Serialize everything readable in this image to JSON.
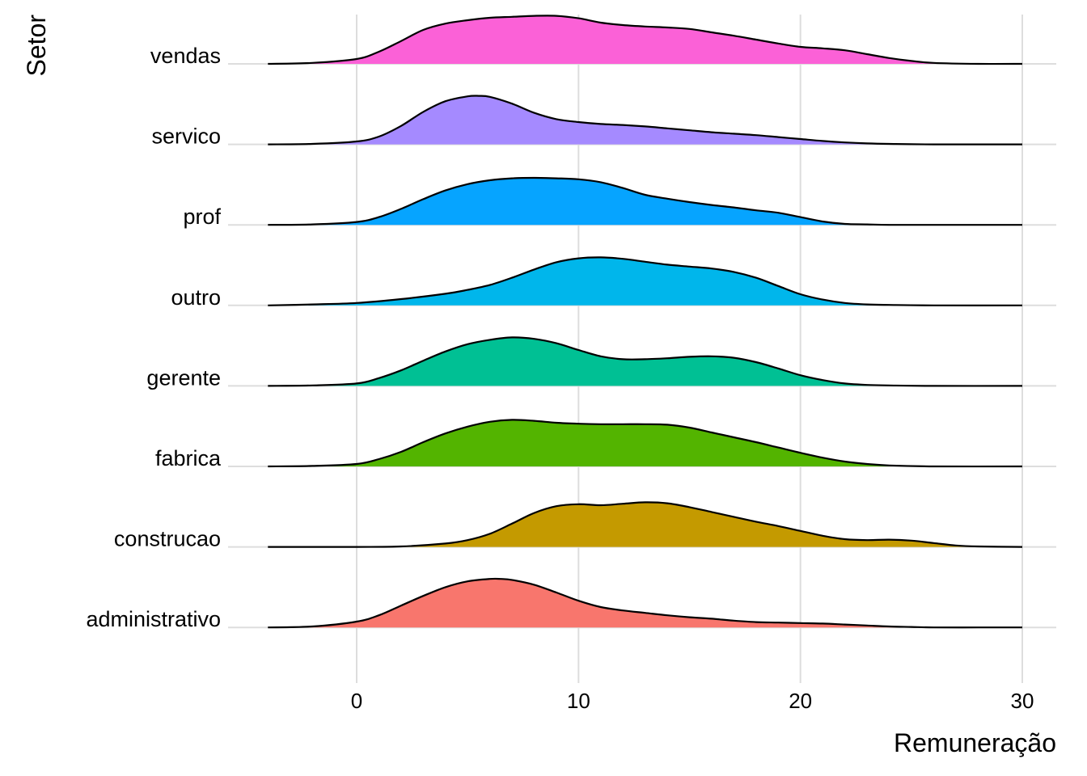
{
  "chart_data": {
    "type": "ridgeline",
    "xlabel": "Remuneração",
    "ylabel": "Setor",
    "xlim": [
      -4,
      30
    ],
    "x_ticks": [
      0,
      10,
      20,
      30
    ],
    "x_tick_labels": [
      "0",
      "10",
      "20",
      "30"
    ],
    "grid": true,
    "legend": "none",
    "series": [
      {
        "name": "administrativo",
        "color": "#F8766D",
        "x": [
          -4,
          -2,
          0,
          1,
          2,
          3,
          4,
          5,
          6,
          6.5,
          7,
          8,
          9,
          10,
          11,
          12,
          13,
          14,
          15,
          16,
          17,
          18,
          19,
          20,
          21,
          22,
          23,
          24,
          25,
          26,
          28,
          30
        ],
        "y": [
          0.0,
          0.02,
          0.12,
          0.25,
          0.45,
          0.65,
          0.83,
          0.95,
          1.0,
          1.0,
          0.98,
          0.88,
          0.72,
          0.55,
          0.42,
          0.35,
          0.3,
          0.25,
          0.21,
          0.18,
          0.14,
          0.11,
          0.1,
          0.09,
          0.08,
          0.06,
          0.04,
          0.02,
          0.01,
          0.0,
          0.0,
          0.0
        ]
      },
      {
        "name": "construcao",
        "color": "#C49A00",
        "x": [
          -4,
          0,
          2,
          4,
          5,
          6,
          7,
          8,
          9,
          10,
          11,
          12,
          13,
          14,
          15,
          16,
          17,
          18,
          19,
          20,
          21,
          22,
          23,
          24,
          25,
          26,
          27,
          28,
          30
        ],
        "y": [
          0.0,
          0.0,
          0.01,
          0.07,
          0.14,
          0.27,
          0.48,
          0.7,
          0.84,
          0.88,
          0.86,
          0.89,
          0.92,
          0.9,
          0.82,
          0.72,
          0.62,
          0.52,
          0.43,
          0.33,
          0.23,
          0.16,
          0.14,
          0.15,
          0.13,
          0.08,
          0.03,
          0.01,
          0.0
        ]
      },
      {
        "name": "fabrica",
        "color": "#53B400",
        "x": [
          -4,
          -2,
          0,
          1,
          2,
          3,
          4,
          5,
          6,
          7,
          8,
          9,
          10,
          11,
          12,
          13,
          14,
          15,
          16,
          17,
          18,
          19,
          20,
          21,
          22,
          23,
          24,
          26,
          30
        ],
        "y": [
          0.0,
          0.01,
          0.05,
          0.15,
          0.3,
          0.5,
          0.68,
          0.82,
          0.92,
          0.96,
          0.94,
          0.9,
          0.88,
          0.87,
          0.87,
          0.87,
          0.86,
          0.8,
          0.7,
          0.6,
          0.5,
          0.39,
          0.28,
          0.18,
          0.1,
          0.05,
          0.02,
          0.0,
          0.0
        ]
      },
      {
        "name": "gerente",
        "color": "#00C094",
        "x": [
          -4,
          -2,
          0,
          1,
          2,
          3,
          4,
          5,
          6,
          7,
          8,
          9,
          10,
          11,
          12,
          13,
          14,
          15,
          16,
          17,
          18,
          19,
          20,
          21,
          22,
          23,
          24,
          26,
          30
        ],
        "y": [
          0.0,
          0.01,
          0.05,
          0.16,
          0.32,
          0.52,
          0.71,
          0.86,
          0.95,
          1.0,
          0.97,
          0.88,
          0.74,
          0.61,
          0.55,
          0.55,
          0.57,
          0.6,
          0.61,
          0.58,
          0.49,
          0.36,
          0.22,
          0.12,
          0.05,
          0.02,
          0.01,
          0.0,
          0.0
        ]
      },
      {
        "name": "outro",
        "color": "#00B6EB",
        "x": [
          -4,
          -2,
          0,
          2,
          4,
          5,
          6,
          7,
          8,
          9,
          10,
          11,
          12,
          13,
          14,
          15,
          16,
          17,
          18,
          19,
          20,
          21,
          22,
          23,
          24,
          26,
          30
        ],
        "y": [
          0.0,
          0.02,
          0.05,
          0.13,
          0.24,
          0.32,
          0.42,
          0.57,
          0.74,
          0.89,
          0.97,
          0.99,
          0.96,
          0.9,
          0.84,
          0.8,
          0.76,
          0.69,
          0.57,
          0.4,
          0.23,
          0.12,
          0.05,
          0.02,
          0.01,
          0.0,
          0.0
        ]
      },
      {
        "name": "prof",
        "color": "#06A4FF",
        "x": [
          -4,
          -2,
          0,
          1,
          2,
          3,
          4,
          5,
          6,
          7,
          8,
          9,
          10,
          11,
          12,
          13,
          14,
          15,
          16,
          17,
          18,
          19,
          20,
          21,
          22,
          23,
          24,
          26,
          30
        ],
        "y": [
          0.0,
          0.01,
          0.06,
          0.16,
          0.33,
          0.53,
          0.71,
          0.84,
          0.92,
          0.96,
          0.97,
          0.96,
          0.94,
          0.88,
          0.76,
          0.62,
          0.54,
          0.47,
          0.41,
          0.36,
          0.3,
          0.25,
          0.16,
          0.07,
          0.02,
          0.01,
          0.0,
          0.0,
          0.0
        ]
      },
      {
        "name": "servico",
        "color": "#A58AFF",
        "x": [
          -4,
          -2,
          0,
          1,
          2,
          3,
          4,
          5,
          5.5,
          6,
          7,
          8,
          9,
          10,
          11,
          12,
          13,
          14,
          15,
          16,
          17,
          18,
          19,
          20,
          21,
          22,
          23,
          24,
          26,
          30
        ],
        "y": [
          0.0,
          0.01,
          0.06,
          0.16,
          0.38,
          0.67,
          0.89,
          0.99,
          1.0,
          0.98,
          0.84,
          0.65,
          0.52,
          0.46,
          0.42,
          0.4,
          0.37,
          0.33,
          0.29,
          0.25,
          0.22,
          0.19,
          0.15,
          0.11,
          0.07,
          0.04,
          0.02,
          0.01,
          0.0,
          0.0
        ]
      },
      {
        "name": "vendas",
        "color": "#FB61D7",
        "x": [
          -4,
          -2,
          0,
          1,
          2,
          3,
          4,
          5,
          6,
          7,
          8,
          9,
          10,
          11,
          12,
          13,
          14,
          15,
          16,
          17,
          18,
          19,
          20,
          21,
          22,
          23,
          24,
          25,
          26,
          28,
          30
        ],
        "y": [
          0.0,
          0.02,
          0.1,
          0.25,
          0.47,
          0.7,
          0.83,
          0.9,
          0.95,
          0.97,
          0.99,
          0.99,
          0.94,
          0.85,
          0.8,
          0.77,
          0.75,
          0.72,
          0.65,
          0.58,
          0.5,
          0.42,
          0.35,
          0.32,
          0.28,
          0.2,
          0.12,
          0.06,
          0.02,
          0.0,
          0.0
        ]
      }
    ]
  }
}
